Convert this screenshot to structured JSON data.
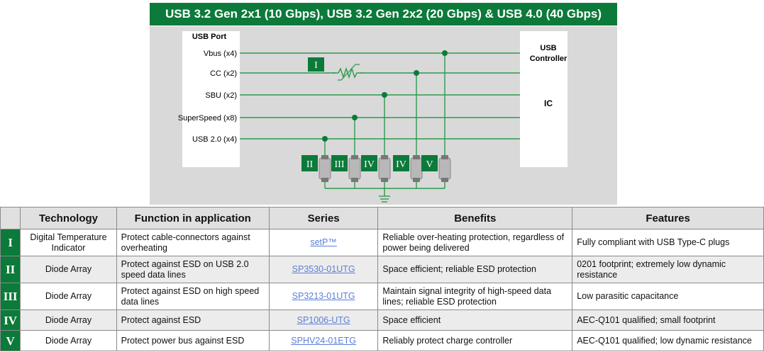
{
  "title": "USB 3.2 Gen 2x1 (10 Gbps), USB 3.2 Gen 2x2 (20 Gbps) & USB 4.0 (40 Gbps)",
  "colors": {
    "brand_green": "#0c7a3a",
    "line_green": "#2e9a4e",
    "panel_gray": "#d9d9d9",
    "link_blue": "#5b7fd6"
  },
  "diagram": {
    "port_title": "USB Port",
    "lines": [
      "Vbus (x4)",
      "CC (x2)",
      "SBU (x2)",
      "SuperSpeed (x8)",
      "USB 2.0 (x4)"
    ],
    "controller_title_1": "USB",
    "controller_title_2": "Controller",
    "controller_ic": "IC",
    "thermistor_label": "I",
    "diode_labels": [
      "II",
      "III",
      "IV",
      "IV",
      "V"
    ]
  },
  "table": {
    "headers": [
      "",
      "Technology",
      "Function in application",
      "Series",
      "Benefits",
      "Features"
    ],
    "rows": [
      {
        "id": "I",
        "technology": "Digital Temperature Indicator",
        "function": "Protect cable-connectors against overheating",
        "series": "setP™",
        "benefits": "Reliable over-heating protection, regardless of power being delivered",
        "features": "Fully compliant with USB Type-C plugs"
      },
      {
        "id": "II",
        "technology": "Diode Array",
        "function": "Protect against ESD on USB 2.0 speed data lines",
        "series": "SP3530-01UTG",
        "benefits": "Space efficient; reliable ESD protection",
        "features": "0201 footprint; extremely low dynamic resistance"
      },
      {
        "id": "III",
        "technology": "Diode Array",
        "function": "Protect against ESD on high speed data lines",
        "series": "SP3213-01UTG",
        "benefits": "Maintain signal integrity of high-speed data lines; reliable ESD protection",
        "features": "Low parasitic capacitance"
      },
      {
        "id": "IV",
        "technology": "Diode Array",
        "function": "Protect against ESD",
        "series": "SP1006-UTG",
        "benefits": "Space efficient",
        "features": "AEC-Q101 qualified; small footprint"
      },
      {
        "id": "V",
        "technology": "Diode Array",
        "function": "Protect power bus against ESD",
        "series": "SPHV24-01ETG",
        "benefits": "Reliably protect charge controller",
        "features": "AEC-Q101 qualified; low dynamic resistance"
      }
    ]
  }
}
